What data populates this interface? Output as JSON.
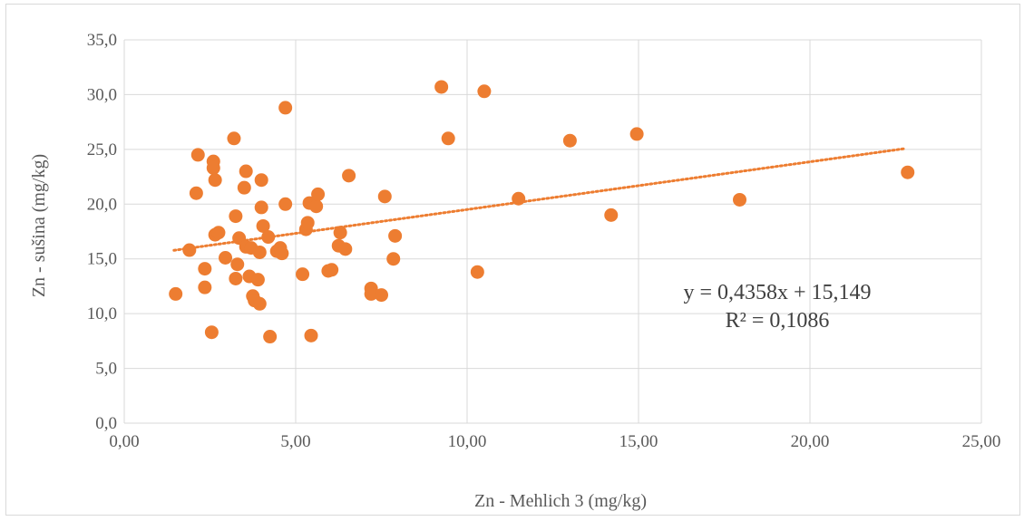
{
  "chart_data": {
    "type": "scatter",
    "title": "",
    "xlabel": "Zn - Mehlich 3 (mg/kg)",
    "ylabel": "Zn - sušina (mg/kg)",
    "xlim": [
      0,
      25
    ],
    "ylim": [
      0,
      35
    ],
    "xticks": [
      0,
      5,
      10,
      15,
      20,
      25
    ],
    "yticks": [
      0,
      5,
      10,
      15,
      20,
      25,
      30,
      35
    ],
    "xtick_labels": [
      "0,00",
      "5,00",
      "10,00",
      "15,00",
      "20,00",
      "25,00"
    ],
    "ytick_labels": [
      "0,0",
      "5,0",
      "10,0",
      "15,0",
      "20,0",
      "25,0",
      "30,0",
      "35,0"
    ],
    "grid": true,
    "marker_color": "#ED7D31",
    "trendline": {
      "type": "linear",
      "slope": 0.4358,
      "intercept": 15.149,
      "x_range": [
        1.45,
        22.8
      ],
      "style": "dotted",
      "color": "#ED7D31",
      "equation_label": "y = 0,4358x + 15,149",
      "r2_label": "R² = 0,1086"
    },
    "points": [
      {
        "x": 1.5,
        "y": 11.8
      },
      {
        "x": 1.9,
        "y": 15.8
      },
      {
        "x": 2.1,
        "y": 21.0
      },
      {
        "x": 2.15,
        "y": 24.5
      },
      {
        "x": 2.35,
        "y": 14.1
      },
      {
        "x": 2.35,
        "y": 12.4
      },
      {
        "x": 2.55,
        "y": 8.3
      },
      {
        "x": 2.6,
        "y": 23.9
      },
      {
        "x": 2.6,
        "y": 23.3
      },
      {
        "x": 2.65,
        "y": 22.2
      },
      {
        "x": 2.65,
        "y": 17.2
      },
      {
        "x": 2.75,
        "y": 17.4
      },
      {
        "x": 2.95,
        "y": 15.1
      },
      {
        "x": 3.2,
        "y": 26.0
      },
      {
        "x": 3.25,
        "y": 18.9
      },
      {
        "x": 3.25,
        "y": 13.2
      },
      {
        "x": 3.3,
        "y": 14.5
      },
      {
        "x": 3.35,
        "y": 16.9
      },
      {
        "x": 3.5,
        "y": 21.5
      },
      {
        "x": 3.55,
        "y": 23.0
      },
      {
        "x": 3.55,
        "y": 16.1
      },
      {
        "x": 3.65,
        "y": 13.4
      },
      {
        "x": 3.7,
        "y": 16.0
      },
      {
        "x": 3.75,
        "y": 11.6
      },
      {
        "x": 3.8,
        "y": 11.2
      },
      {
        "x": 3.9,
        "y": 13.1
      },
      {
        "x": 3.95,
        "y": 10.9
      },
      {
        "x": 3.95,
        "y": 15.6
      },
      {
        "x": 4.0,
        "y": 22.2
      },
      {
        "x": 4.0,
        "y": 19.7
      },
      {
        "x": 4.05,
        "y": 18.0
      },
      {
        "x": 4.2,
        "y": 17.0
      },
      {
        "x": 4.25,
        "y": 7.9
      },
      {
        "x": 4.45,
        "y": 15.7
      },
      {
        "x": 4.55,
        "y": 16.0
      },
      {
        "x": 4.6,
        "y": 15.5
      },
      {
        "x": 4.7,
        "y": 28.8
      },
      {
        "x": 4.7,
        "y": 20.0
      },
      {
        "x": 5.2,
        "y": 13.6
      },
      {
        "x": 5.3,
        "y": 17.7
      },
      {
        "x": 5.35,
        "y": 18.3
      },
      {
        "x": 5.4,
        "y": 20.1
      },
      {
        "x": 5.45,
        "y": 8.0
      },
      {
        "x": 5.6,
        "y": 19.8
      },
      {
        "x": 5.65,
        "y": 20.9
      },
      {
        "x": 5.95,
        "y": 13.9
      },
      {
        "x": 6.05,
        "y": 14.0
      },
      {
        "x": 6.25,
        "y": 16.2
      },
      {
        "x": 6.3,
        "y": 17.4
      },
      {
        "x": 6.45,
        "y": 15.9
      },
      {
        "x": 6.55,
        "y": 22.6
      },
      {
        "x": 7.2,
        "y": 12.3
      },
      {
        "x": 7.2,
        "y": 11.8
      },
      {
        "x": 7.5,
        "y": 11.7
      },
      {
        "x": 7.6,
        "y": 20.7
      },
      {
        "x": 7.85,
        "y": 15.0
      },
      {
        "x": 7.9,
        "y": 17.1
      },
      {
        "x": 9.25,
        "y": 30.7
      },
      {
        "x": 9.45,
        "y": 26.0
      },
      {
        "x": 10.3,
        "y": 13.8
      },
      {
        "x": 10.5,
        "y": 30.3
      },
      {
        "x": 11.5,
        "y": 20.5
      },
      {
        "x": 13.0,
        "y": 25.8
      },
      {
        "x": 14.2,
        "y": 19.0
      },
      {
        "x": 14.95,
        "y": 26.4
      },
      {
        "x": 17.95,
        "y": 20.4
      },
      {
        "x": 22.85,
        "y": 22.9
      }
    ]
  }
}
